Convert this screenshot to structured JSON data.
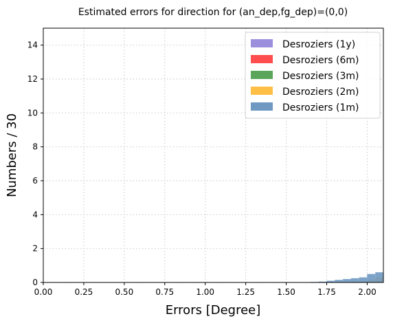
{
  "chart_data": {
    "type": "bar",
    "title": "Estimated errors for direction for (an_dep,fg_dep)=(0,0)",
    "xlabel": "Errors [Degree]",
    "ylabel": "Numbers / 30",
    "xlim": [
      0.0,
      2.1
    ],
    "ylim": [
      0,
      15
    ],
    "xticks": [
      "0.00",
      "0.25",
      "0.50",
      "0.75",
      "1.00",
      "1.25",
      "1.50",
      "1.75",
      "2.00"
    ],
    "yticks": [
      "0",
      "2",
      "4",
      "6",
      "8",
      "10",
      "12",
      "14"
    ],
    "grid": true,
    "legend_position": "top-right",
    "bin_width": 0.05,
    "series": [
      {
        "name": "Desroziers (1y)",
        "color": "#9b8fdd",
        "bins": [
          1.6,
          1.65,
          1.7,
          1.75,
          1.8,
          1.85,
          1.9,
          1.95,
          2.0,
          2.05
        ],
        "values": [
          0.0,
          0.0,
          0.0,
          0.0,
          0.0,
          0.0,
          0.0,
          0.0,
          0.05,
          0.1
        ]
      },
      {
        "name": "Desroziers (6m)",
        "color": "#ff4d4d",
        "bins": [
          1.6,
          1.65,
          1.7,
          1.75,
          1.8,
          1.85,
          1.9,
          1.95,
          2.0,
          2.05
        ],
        "values": [
          0.0,
          0.0,
          0.0,
          0.0,
          0.0,
          0.0,
          0.0,
          0.0,
          0.05,
          0.1
        ]
      },
      {
        "name": "Desroziers (3m)",
        "color": "#5aa55a",
        "bins": [
          1.6,
          1.65,
          1.7,
          1.75,
          1.8,
          1.85,
          1.9,
          1.95,
          2.0,
          2.05
        ],
        "values": [
          0.0,
          0.0,
          0.0,
          0.0,
          0.0,
          0.0,
          0.0,
          0.05,
          0.1,
          0.2
        ]
      },
      {
        "name": "Desroziers (2m)",
        "color": "#ffbf47",
        "bins": [
          1.6,
          1.65,
          1.7,
          1.75,
          1.8,
          1.85,
          1.9,
          1.95,
          2.0,
          2.05
        ],
        "values": [
          0.0,
          0.0,
          0.0,
          0.0,
          0.0,
          0.0,
          0.05,
          0.05,
          0.15,
          0.3
        ]
      },
      {
        "name": "Desroziers (1m)",
        "color": "#6f99c2",
        "bins": [
          1.6,
          1.65,
          1.7,
          1.75,
          1.8,
          1.85,
          1.9,
          1.95,
          2.0,
          2.05
        ],
        "values": [
          0.02,
          0.03,
          0.05,
          0.1,
          0.15,
          0.2,
          0.25,
          0.3,
          0.5,
          0.6
        ]
      }
    ]
  }
}
